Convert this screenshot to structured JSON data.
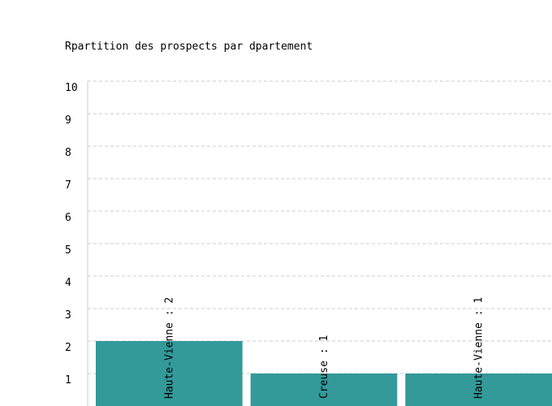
{
  "chart_data": {
    "type": "bar",
    "title": "Rpartition des prospects par dpartement",
    "categories": [
      "Haute-Vienne",
      "Creuse",
      "Haute-Vienne"
    ],
    "values": [
      2,
      1,
      1
    ],
    "data_labels": [
      "Haute-Vienne : 2",
      "Creuse : 1",
      "Haute-Vienne : 1"
    ],
    "yticks": [
      1,
      2,
      3,
      4,
      5,
      6,
      7,
      8,
      9,
      10
    ],
    "ylim": [
      0,
      10
    ],
    "xlabel": "",
    "ylabel": "",
    "grid": true,
    "bar_color": "#339999",
    "grid_color": "#cccccc"
  }
}
